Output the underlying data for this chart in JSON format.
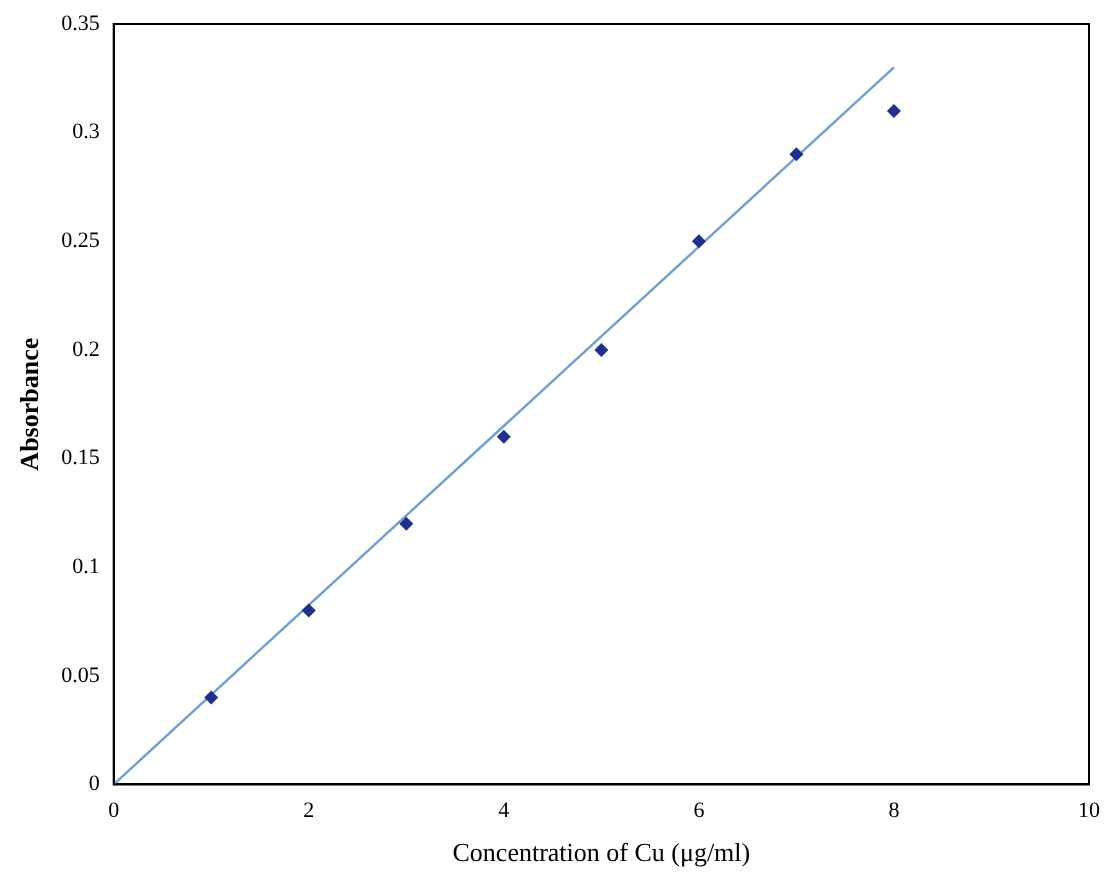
{
  "chart_data": {
    "type": "scatter",
    "xlabel": "Concentration of Cu (μg/ml)",
    "ylabel": "Absorbance",
    "xlim": [
      0,
      10
    ],
    "xticks": [
      0,
      2,
      4,
      6,
      8,
      10
    ],
    "ylim": [
      0,
      0.35
    ],
    "yticks": [
      0,
      0.05,
      0.1,
      0.15,
      0.2,
      0.25,
      0.3,
      0.35
    ],
    "grid": false,
    "legend": false,
    "marker": "diamond",
    "series": [
      {
        "type": "scatter",
        "color": "#1f2f8f",
        "x": [
          1,
          2,
          3,
          4,
          5,
          6,
          7,
          8
        ],
        "values": [
          0.04,
          0.08,
          0.12,
          0.16,
          0.2,
          0.25,
          0.29,
          0.31
        ]
      },
      {
        "type": "line",
        "color": "#6a9fd8",
        "marker": "none",
        "line_style": "solid",
        "x": [
          0,
          8
        ],
        "values": [
          0,
          0.33
        ]
      }
    ]
  }
}
